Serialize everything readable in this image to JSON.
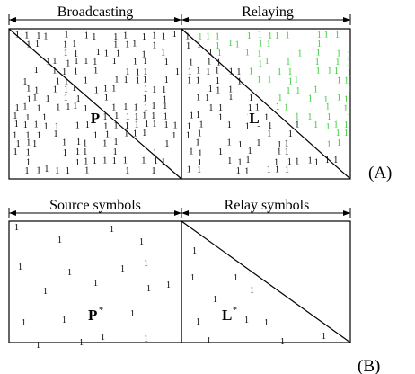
{
  "panel_a": {
    "label": "(A)",
    "left_header": "Broadcasting",
    "right_header": "Relaying",
    "left_matrix_label": "P",
    "right_matrix_label": "L"
  },
  "panel_b": {
    "label": "(B)",
    "left_header": "Source symbols",
    "right_header": "Relay symbols",
    "left_matrix_label": "P",
    "left_matrix_sup": "*",
    "right_matrix_label": "L",
    "right_matrix_sup": "*"
  },
  "entry_symbol": "1",
  "colors": {
    "line": "#000000",
    "entry_black": "#000000",
    "entry_green": "#33cc33"
  }
}
